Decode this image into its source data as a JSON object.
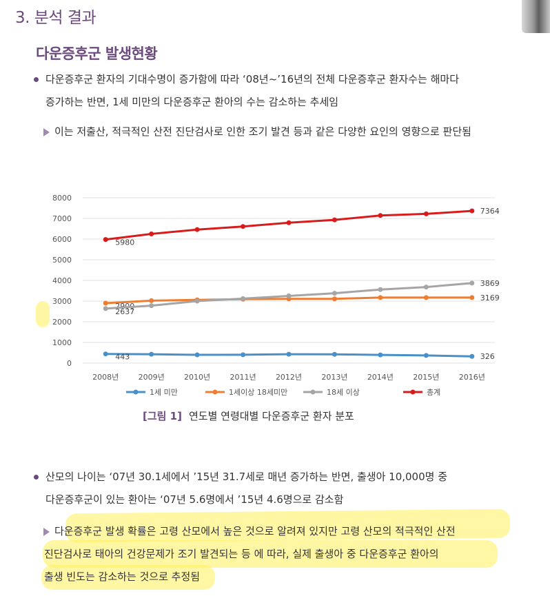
{
  "section_title": "3. 분석 결과",
  "sub_title": "다운증후군 발생현황",
  "bullet1": {
    "line1": "다운증후군 환자의 기대수명이 증가함에 따라 ‘08년~’16년의 전체 다운증후군 환자수는 해마다",
    "line2": "증가하는 반면, 1세 미만의 다운증후군 환아의 수는 감소하는 추세임"
  },
  "arrow1": "이는 저출산, 적극적인 산전 진단검사로 인한 조기 발견 등과 같은 다양한 요인의 영향으로 판단됨",
  "caption": {
    "fig": "[그림 1]",
    "text": "연도별 연령대별 다운증후군 환자 분포"
  },
  "bullet2": {
    "line1": "산모의 나이는 ‘07년 30.1세에서 ’15년 31.7세로 매년 증가하는 반면, 출생아 10,000명 중",
    "line2": "다운증후군이 있는 환아는 ‘07년 5.6명에서 ’15년 4.6명으로 감소함"
  },
  "arrow2": {
    "line1": "다운증후군 발생 확률은 고령 산모에서 높은 것으로 알려져 있지만 고령 산모의 적극적인 산전",
    "line2": "진단검사로 태아의 건강문제가 조기 발견되는 등 에 따라, 실제 출생아 중 다운증후군 환아의",
    "line3": "출생 빈도는 감소하는 것으로 추정됨"
  },
  "colors": {
    "accent": "#6b4a7e",
    "highlight": "#fff05a"
  },
  "chart_data": {
    "type": "line",
    "categories": [
      "2008년",
      "2009년",
      "2010년",
      "2011년",
      "2012년",
      "2013년",
      "2014년",
      "2015년",
      "2016년"
    ],
    "ylim": [
      0,
      8000
    ],
    "yticks": [
      "0",
      "1000",
      "2000",
      "3000",
      "4000",
      "5000",
      "6000",
      "7000",
      "8000"
    ],
    "grid": true,
    "legend_position": "bottom",
    "series": [
      {
        "name": "1세 미만",
        "color": "#4a90c8",
        "values": [
          443,
          430,
          400,
          405,
          430,
          425,
          395,
          370,
          326
        ],
        "labels": {
          "0": "443",
          "8": "326"
        }
      },
      {
        "name": "1세이상 18세미만",
        "color": "#ed7d31",
        "values": [
          2900,
          3020,
          3060,
          3090,
          3110,
          3110,
          3170,
          3170,
          3169
        ],
        "labels": {
          "0": "2900",
          "8": "3169"
        }
      },
      {
        "name": "18세 이상",
        "color": "#a5a5a5",
        "values": [
          2637,
          2780,
          3000,
          3120,
          3250,
          3380,
          3560,
          3680,
          3869
        ],
        "labels": {
          "0": "2637",
          "8": "3869"
        }
      },
      {
        "name": "총계",
        "color": "#d81b1b",
        "values": [
          5980,
          6250,
          6460,
          6610,
          6790,
          6930,
          7140,
          7220,
          7364
        ],
        "labels": {
          "0": "5980",
          "8": "7364"
        }
      }
    ]
  }
}
